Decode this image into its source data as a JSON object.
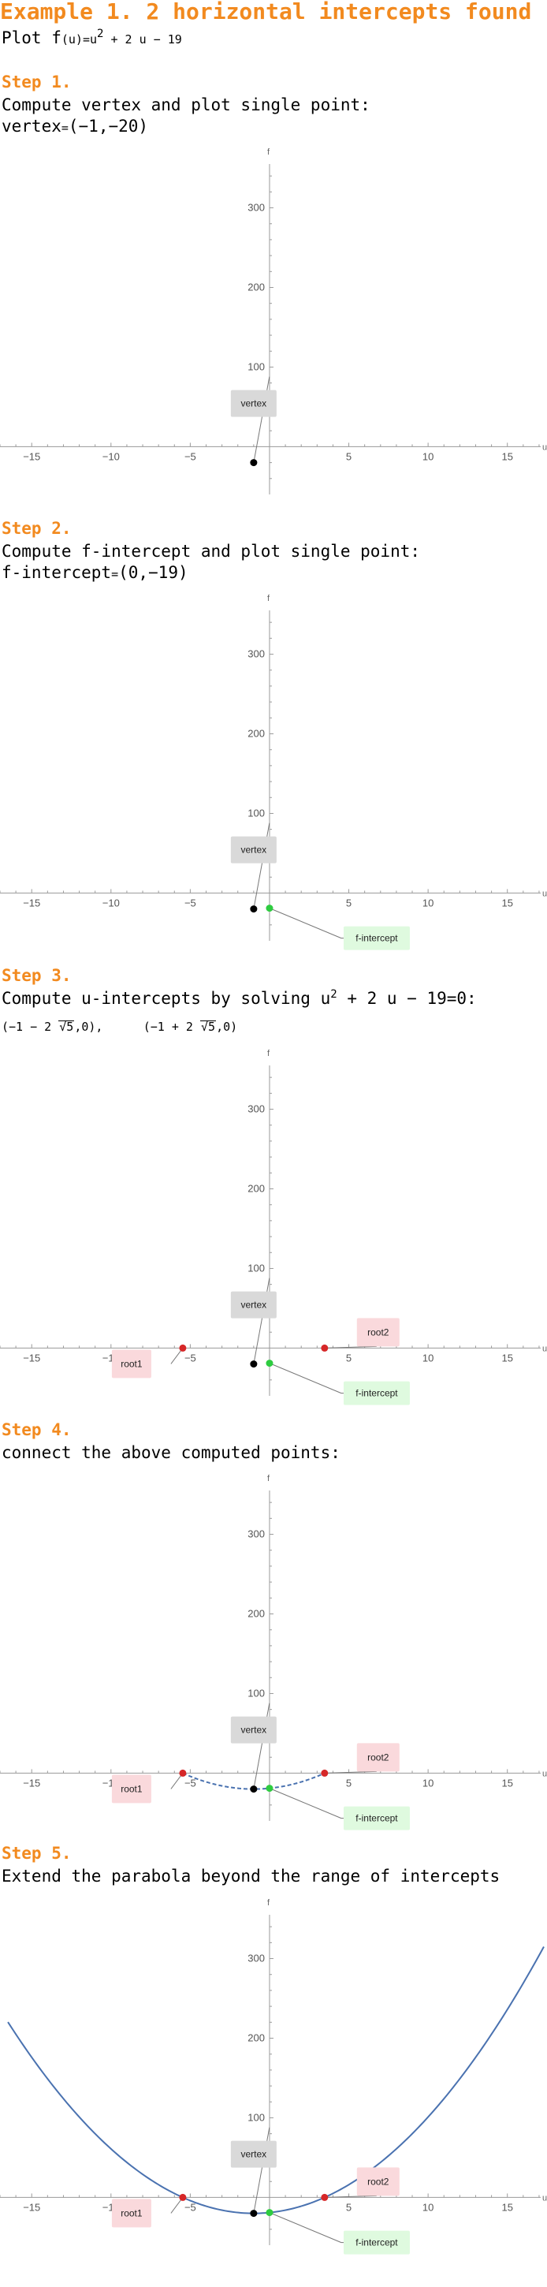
{
  "title": "Example 1. 2 horizontal intercepts found",
  "plot_line": {
    "prefix": "Plot f",
    "arg": "(u)",
    "eq": "=u",
    "exp": "2",
    "rest": " + 2 u − 19"
  },
  "steps": [
    {
      "label": "Step 1.",
      "text": "Compute vertex and plot single point:",
      "result": {
        "name": "vertex",
        "eq": "=",
        "value": "(−1,−20)"
      }
    },
    {
      "label": "Step 2.",
      "text": "Compute f-intercept and plot single point:",
      "result": {
        "name": "f-intercept",
        "eq": "=",
        "value": "(0,−19)"
      }
    },
    {
      "label": "Step 3.",
      "text_prefix": "Compute u-intercepts by solving u",
      "exp": "2",
      "text_suffix": " + 2 u − 19=0:",
      "roots": [
        {
          "open": "(−1 − 2 ",
          "rad": "5",
          "close": ",0),"
        },
        {
          "open": "(−1 + 2 ",
          "rad": "5",
          "close": ",0)"
        }
      ]
    },
    {
      "label": "Step 4.",
      "text": "connect the above computed points:"
    },
    {
      "label": "Step 5.",
      "text": "Extend the parabola beyond the range of intercepts"
    }
  ],
  "axis_labels": {
    "x": "u",
    "y": "f"
  },
  "colors": {
    "accent": "#F28A1F",
    "curve": "#4A72B0",
    "vertex": "#000000",
    "intercept": "#2ECC40",
    "root": "#D62728",
    "vertex_label_bg": "#D9D9D9",
    "intercept_label_bg": "#DFFADF",
    "root_label_bg": "#FAD9DC"
  },
  "chart_data": [
    {
      "type": "scatter",
      "xlim": [
        -17,
        17.5
      ],
      "ylim": [
        -60,
        355
      ],
      "xticks": [
        -15,
        -10,
        -5,
        5,
        10,
        15
      ],
      "yticks": [
        100,
        200,
        300
      ],
      "grid": false,
      "points": [
        {
          "name": "vertex",
          "x": -1,
          "y": -20
        }
      ],
      "labels": [
        {
          "text": "vertex",
          "point": "vertex"
        }
      ]
    },
    {
      "type": "scatter",
      "xlim": [
        -17,
        17.5
      ],
      "ylim": [
        -60,
        355
      ],
      "xticks": [
        -15,
        -10,
        -5,
        5,
        10,
        15
      ],
      "yticks": [
        100,
        200,
        300
      ],
      "grid": false,
      "points": [
        {
          "name": "vertex",
          "x": -1,
          "y": -20
        },
        {
          "name": "f-intercept",
          "x": 0,
          "y": -19
        }
      ],
      "labels": [
        {
          "text": "vertex",
          "point": "vertex"
        },
        {
          "text": "f-intercept",
          "point": "f-intercept"
        }
      ]
    },
    {
      "type": "scatter",
      "xlim": [
        -17,
        17.5
      ],
      "ylim": [
        -60,
        355
      ],
      "xticks": [
        -15,
        -10,
        -5,
        5,
        10,
        15
      ],
      "yticks": [
        100,
        200,
        300
      ],
      "grid": false,
      "points": [
        {
          "name": "vertex",
          "x": -1,
          "y": -20
        },
        {
          "name": "f-intercept",
          "x": 0,
          "y": -19
        },
        {
          "name": "root1",
          "x": -5.472,
          "y": 0
        },
        {
          "name": "root2",
          "x": 3.472,
          "y": 0
        }
      ],
      "labels": [
        {
          "text": "vertex",
          "point": "vertex"
        },
        {
          "text": "f-intercept",
          "point": "f-intercept"
        },
        {
          "text": "root1",
          "point": "root1"
        },
        {
          "text": "root2",
          "point": "root2"
        }
      ]
    },
    {
      "type": "line",
      "xlim": [
        -17,
        17.5
      ],
      "ylim": [
        -60,
        355
      ],
      "xticks": [
        -15,
        -10,
        -5,
        5,
        10,
        15
      ],
      "yticks": [
        100,
        200,
        300
      ],
      "grid": false,
      "points": [
        {
          "name": "vertex",
          "x": -1,
          "y": -20
        },
        {
          "name": "f-intercept",
          "x": 0,
          "y": -19
        },
        {
          "name": "root1",
          "x": -5.472,
          "y": 0
        },
        {
          "name": "root2",
          "x": 3.472,
          "y": 0
        }
      ],
      "labels": [
        {
          "text": "vertex",
          "point": "vertex"
        },
        {
          "text": "f-intercept",
          "point": "f-intercept"
        },
        {
          "text": "root1",
          "point": "root1"
        },
        {
          "text": "root2",
          "point": "root2"
        }
      ],
      "curve": {
        "function": "u^2 + 2u - 19",
        "u_range": [
          -5.472,
          3.472
        ],
        "style": "dashed"
      }
    },
    {
      "type": "line",
      "xlim": [
        -17,
        17.5
      ],
      "ylim": [
        -60,
        355
      ],
      "xticks": [
        -15,
        -10,
        -5,
        5,
        10,
        15
      ],
      "yticks": [
        100,
        200,
        300
      ],
      "grid": false,
      "points": [
        {
          "name": "vertex",
          "x": -1,
          "y": -20
        },
        {
          "name": "f-intercept",
          "x": 0,
          "y": -19
        },
        {
          "name": "root1",
          "x": -5.472,
          "y": 0
        },
        {
          "name": "root2",
          "x": 3.472,
          "y": 0
        }
      ],
      "labels": [
        {
          "text": "vertex",
          "point": "vertex"
        },
        {
          "text": "f-intercept",
          "point": "f-intercept"
        },
        {
          "text": "root1",
          "point": "root1"
        },
        {
          "text": "root2",
          "point": "root2"
        }
      ],
      "curve": {
        "function": "u^2 + 2u - 19",
        "u_range": [
          -16.5,
          17.3
        ],
        "style": "solid"
      }
    }
  ]
}
